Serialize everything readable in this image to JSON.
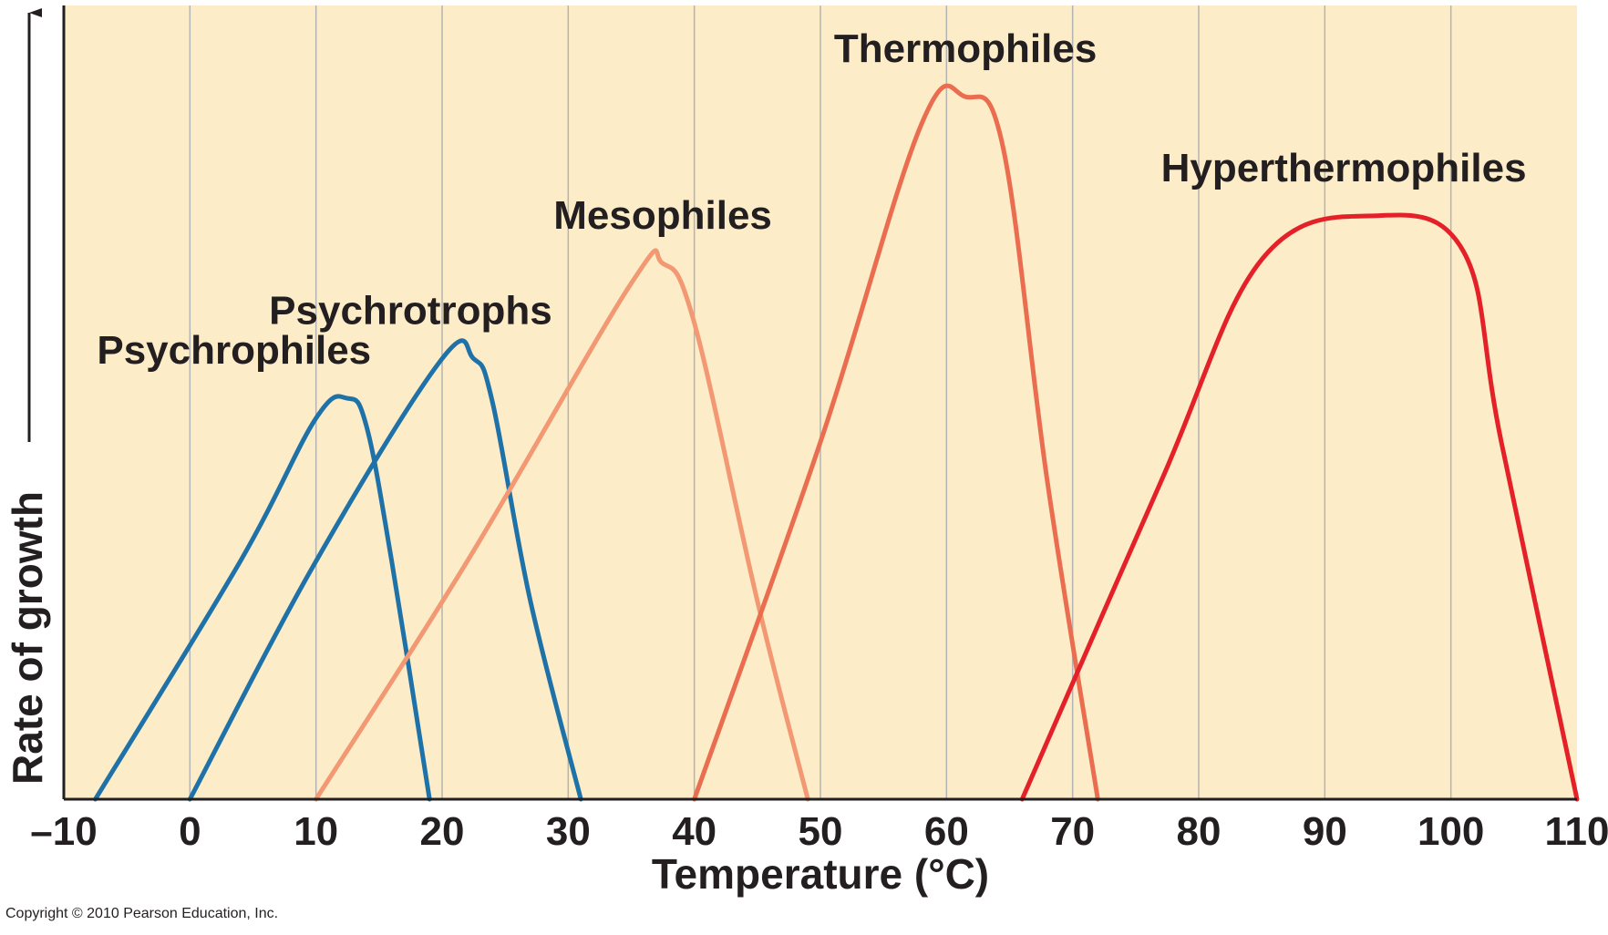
{
  "chart_data": {
    "type": "line",
    "xlabel": "Temperature (°C)",
    "ylabel": "Rate of growth",
    "xlim": [
      -10,
      110
    ],
    "ylim": [
      0,
      1
    ],
    "x_ticks": [
      -10,
      0,
      10,
      20,
      30,
      40,
      50,
      60,
      70,
      80,
      90,
      100,
      110
    ],
    "x_tick_labels": [
      "–10",
      "0",
      "10",
      "20",
      "30",
      "40",
      "50",
      "60",
      "70",
      "80",
      "90",
      "100",
      "110"
    ],
    "grid": true,
    "background_color": "#fdecc8",
    "series": [
      {
        "name": "Psychrophiles",
        "color": "#1f72a8",
        "points": [
          [
            -7.5,
            0
          ],
          [
            4,
            0.3
          ],
          [
            10,
            0.48
          ],
          [
            12.5,
            0.505
          ],
          [
            14,
            0.47
          ],
          [
            16,
            0.3
          ],
          [
            19,
            0
          ]
        ]
      },
      {
        "name": "Psychrotrophs",
        "color": "#1f72a8",
        "points": [
          [
            0,
            0
          ],
          [
            10,
            0.3
          ],
          [
            20,
            0.555
          ],
          [
            22.5,
            0.555
          ],
          [
            24,
            0.5
          ],
          [
            27,
            0.25
          ],
          [
            31,
            0
          ]
        ]
      },
      {
        "name": "Mesophiles",
        "color": "#f29873",
        "points": [
          [
            10,
            0
          ],
          [
            22,
            0.3
          ],
          [
            35,
            0.65
          ],
          [
            37.5,
            0.675
          ],
          [
            40,
            0.6
          ],
          [
            45,
            0.25
          ],
          [
            49,
            0
          ]
        ]
      },
      {
        "name": "Thermophiles",
        "color": "#ea6d50",
        "points": [
          [
            40,
            0
          ],
          [
            50,
            0.45
          ],
          [
            58,
            0.85
          ],
          [
            61.5,
            0.885
          ],
          [
            64.5,
            0.82
          ],
          [
            68,
            0.4
          ],
          [
            72,
            0
          ]
        ]
      },
      {
        "name": "Hyperthermophiles",
        "color": "#e42028",
        "points": [
          [
            66,
            0
          ],
          [
            77,
            0.4
          ],
          [
            85,
            0.68
          ],
          [
            94,
            0.735
          ],
          [
            101,
            0.69
          ],
          [
            104,
            0.45
          ],
          [
            110,
            0
          ]
        ]
      }
    ]
  },
  "copyright": "Copyright © 2010 Pearson Education, Inc."
}
